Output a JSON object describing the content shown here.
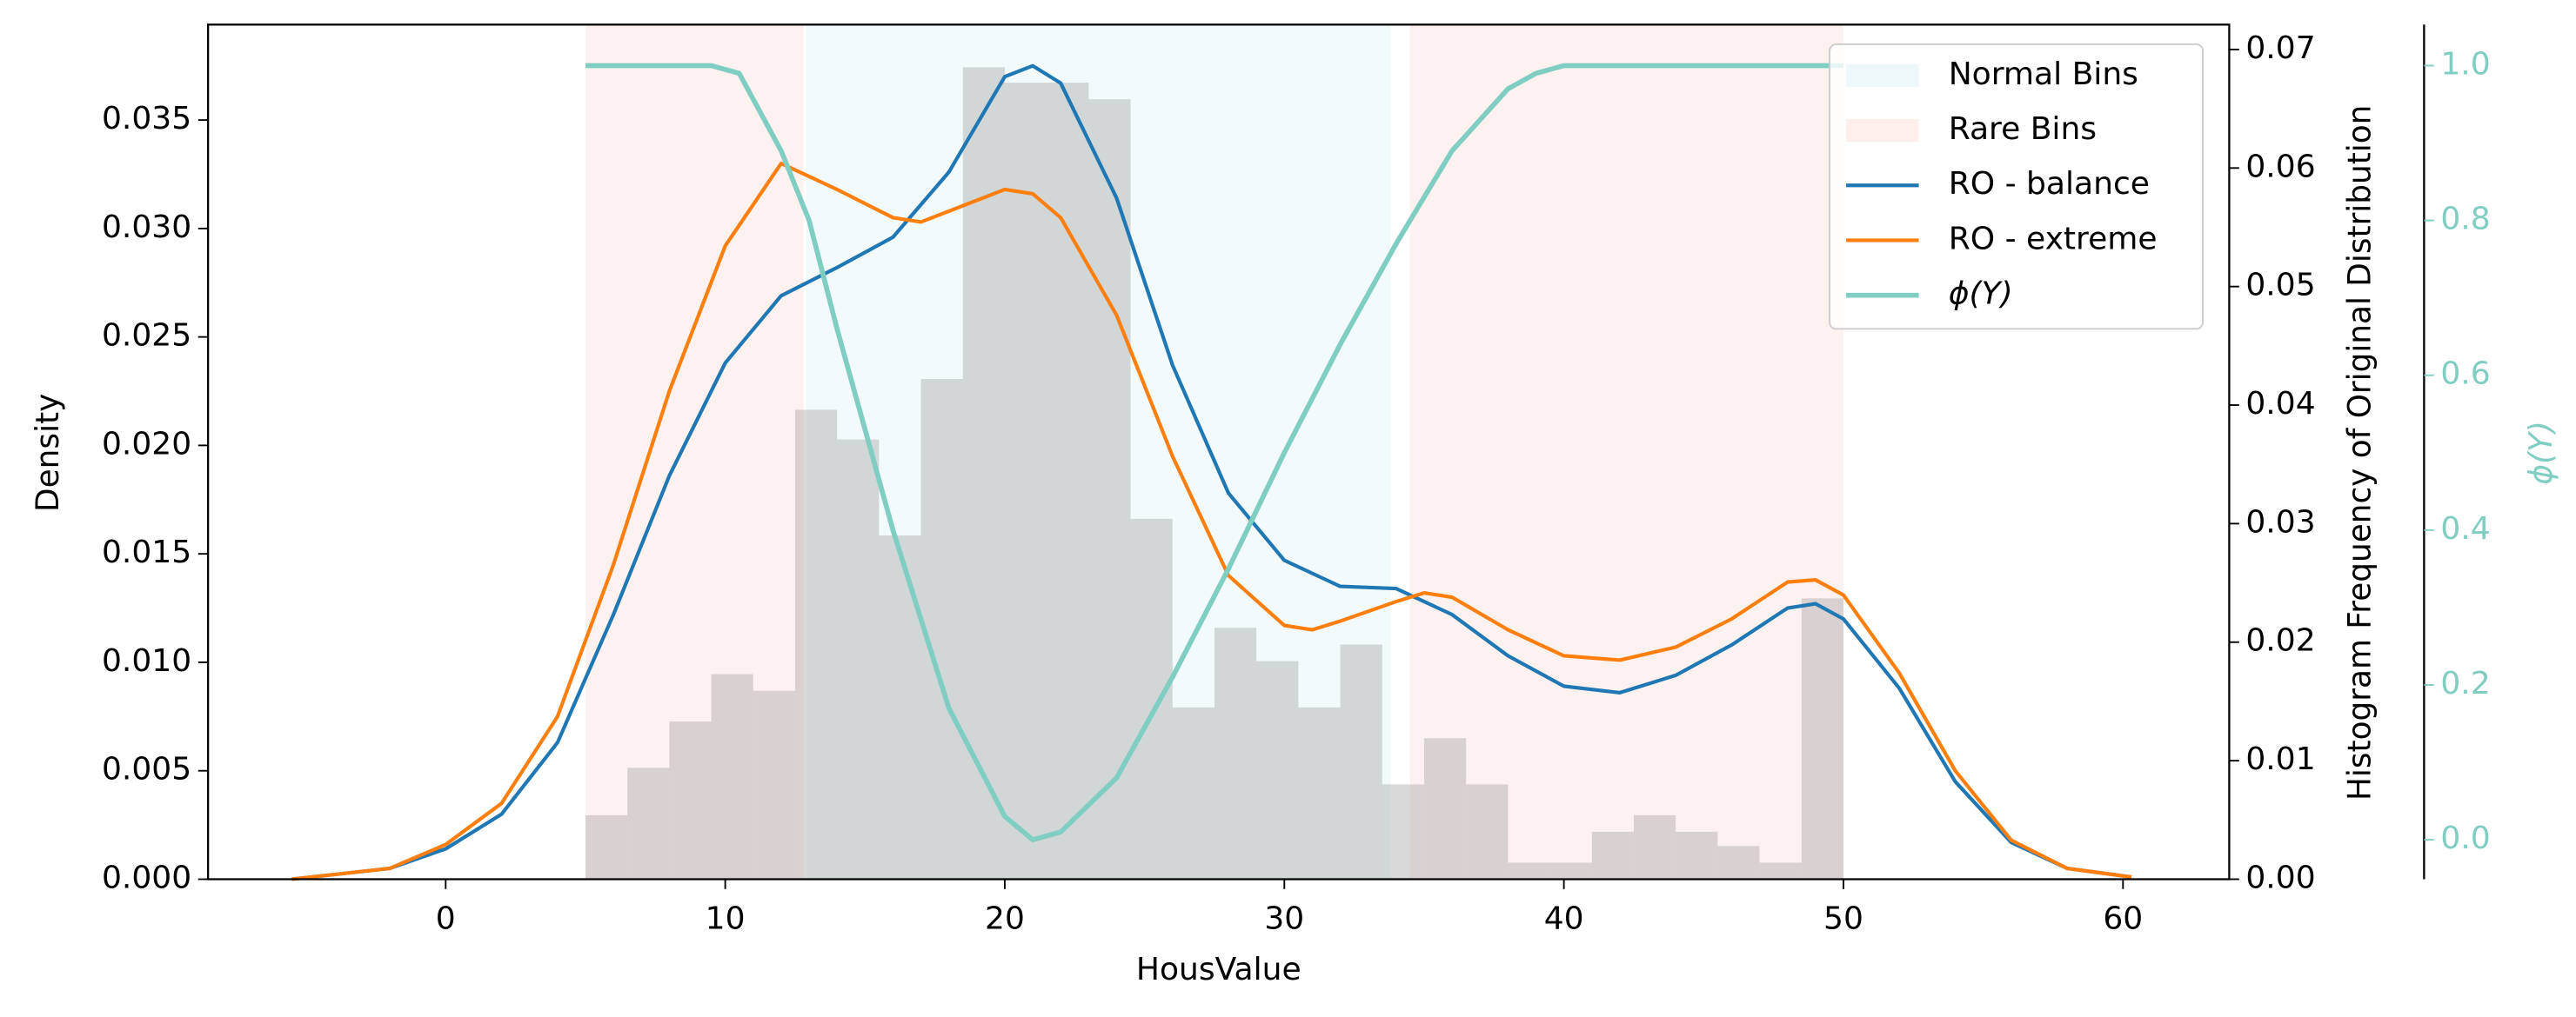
{
  "chart_data": {
    "type": "combo",
    "xlabel": "HousValue",
    "ylabel": "Density",
    "y2label": "Histogram Frequency of Original Distribution",
    "y3label": "ϕ(Y)",
    "y3color": "#80cdc1",
    "xlim": [
      -8.5,
      63.8
    ],
    "xticks": [
      0,
      10,
      20,
      30,
      40,
      50,
      60
    ],
    "ylim": [
      0,
      0.0394
    ],
    "yticks": [
      {
        "value": 0,
        "label": "0.000"
      },
      0.005,
      {
        "value": 0.01,
        "label": "0.010"
      },
      0.015,
      {
        "value": 0.02,
        "label": "0.020"
      },
      0.025,
      {
        "value": 0.03,
        "label": "0.030"
      },
      0.035
    ],
    "y2lim": [
      0,
      0.0721
    ],
    "y2ticks": [
      {
        "value": 0,
        "label": "0.00"
      },
      0.01,
      0.02,
      0.03,
      0.04,
      0.05,
      0.06,
      0.07
    ],
    "y3lim": [
      -0.051,
      1.053
    ],
    "y3ticks": [
      {
        "value": 0,
        "label": "0.0"
      },
      0.2,
      0.4,
      0.6,
      0.8,
      {
        "value": 1,
        "label": "1.0"
      }
    ],
    "legend": "upper right",
    "grid": false,
    "spans": [
      {
        "name": "Normal Bins",
        "color": "#e3f4f8",
        "ranges": [
          [
            12.9,
            33.8
          ]
        ]
      },
      {
        "name": "Rare Bins",
        "color": "#fde3e0",
        "ranges": [
          [
            5,
            12.8
          ],
          [
            34.5,
            50
          ]
        ]
      }
    ],
    "histogram": {
      "color": "#a0a0a0",
      "axis": "y2",
      "bins": [
        5,
        6.5,
        8,
        9.5,
        11,
        12.5,
        14,
        15.5,
        17,
        18.5,
        20,
        21.5,
        23,
        24.5,
        26,
        27.5,
        29,
        30.5,
        32,
        33.5,
        35,
        36.5,
        38,
        39.5,
        41,
        42.5,
        44,
        45.5,
        47,
        48.5,
        50
      ],
      "counts": [
        0.0054,
        0.0094,
        0.0133,
        0.0173,
        0.0159,
        0.0396,
        0.0371,
        0.029,
        0.0422,
        0.0685,
        0.0672,
        0.0672,
        0.0658,
        0.0304,
        0.0145,
        0.0212,
        0.0184,
        0.0145,
        0.0198,
        0.008,
        0.0119,
        0.008,
        0.0014,
        0.0014,
        0.004,
        0.0054,
        0.004,
        0.0028,
        0.0014,
        0.0237
      ]
    },
    "series": [
      {
        "name": "RO - balance",
        "color": "#1f77b4",
        "x": [
          -5.5,
          -2,
          0,
          2,
          4,
          6,
          8,
          10,
          12,
          14,
          16,
          18,
          20,
          21,
          22,
          24,
          26,
          28,
          30,
          32,
          34,
          36,
          38,
          40,
          42,
          44,
          46,
          48,
          49,
          50,
          52,
          54,
          56,
          58,
          60.3
        ],
        "values": [
          0,
          0.0005,
          0.0014,
          0.003,
          0.0063,
          0.0122,
          0.0186,
          0.0238,
          0.0269,
          0.0282,
          0.0296,
          0.0326,
          0.037,
          0.0375,
          0.0367,
          0.0314,
          0.0237,
          0.0178,
          0.0147,
          0.0135,
          0.0134,
          0.0122,
          0.0103,
          0.0089,
          0.0086,
          0.0094,
          0.0108,
          0.0125,
          0.0127,
          0.012,
          0.0088,
          0.0045,
          0.0017,
          0.0005,
          0.0001
        ]
      },
      {
        "name": "RO - extreme",
        "color": "#ff7f0e",
        "x": [
          -5.5,
          -2,
          0,
          2,
          4,
          6,
          8,
          10,
          12,
          14,
          16,
          17,
          18,
          20,
          21,
          22,
          24,
          26,
          28,
          30,
          31,
          32,
          34,
          35,
          36,
          38,
          40,
          42,
          44,
          46,
          48,
          49,
          50,
          52,
          54,
          56,
          58,
          60.3
        ],
        "values": [
          0,
          0.0005,
          0.0016,
          0.0035,
          0.0075,
          0.0145,
          0.0225,
          0.0292,
          0.033,
          0.0318,
          0.0305,
          0.0303,
          0.0308,
          0.0318,
          0.0316,
          0.0305,
          0.026,
          0.0195,
          0.014,
          0.0117,
          0.0115,
          0.0119,
          0.0128,
          0.0132,
          0.013,
          0.0115,
          0.0103,
          0.0101,
          0.0107,
          0.012,
          0.0137,
          0.0138,
          0.0131,
          0.0095,
          0.005,
          0.0018,
          0.0005,
          0.0001
        ]
      },
      {
        "name": "ϕ(Y)",
        "color": "#80cdc1",
        "axis": "y3",
        "x": [
          5,
          9.5,
          10.5,
          12,
          13,
          14,
          16,
          18,
          20,
          21,
          22,
          24,
          26,
          28,
          30,
          32,
          34,
          36,
          38,
          39,
          40,
          50
        ],
        "values": [
          1,
          1,
          0.99,
          0.89,
          0.8,
          0.66,
          0.4,
          0.17,
          0.03,
          0,
          0.01,
          0.08,
          0.21,
          0.35,
          0.5,
          0.64,
          0.77,
          0.89,
          0.97,
          0.99,
          1,
          1
        ]
      }
    ]
  }
}
